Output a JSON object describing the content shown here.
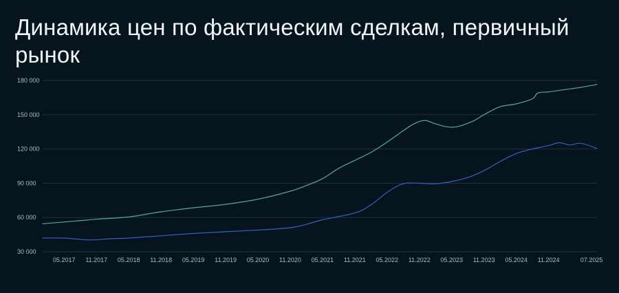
{
  "title": "Динамика цен по фактическим сделкам, первичный рынок",
  "colors": {
    "background": "#05141d",
    "title": "#f3f6f8",
    "grid": "#1e3542",
    "tick_label": "#aebdc6"
  },
  "chart_data": {
    "type": "line",
    "title": "Динамика цен по фактическим сделкам, первичный рынок",
    "xlabel": "",
    "ylabel": "",
    "ylim": [
      30000,
      180000
    ],
    "yticks": [
      30000,
      60000,
      90000,
      120000,
      150000,
      180000
    ],
    "ytick_labels": [
      "30 000",
      "60 000",
      "90 000",
      "120 000",
      "150 000",
      "180 000"
    ],
    "xrange": [
      "2017-01",
      "2025-08"
    ],
    "xticks": [
      "2017-05",
      "2017-11",
      "2018-05",
      "2018-11",
      "2019-05",
      "2019-11",
      "2020-05",
      "2020-11",
      "2021-05",
      "2021-11",
      "2022-05",
      "2022-11",
      "2023-05",
      "2023-11",
      "2024-05",
      "2024-11",
      "2025-07"
    ],
    "xtick_labels": [
      "05.2017",
      "11.2017",
      "05.2018",
      "11.2018",
      "05.2019",
      "11.2019",
      "05.2020",
      "11.2020",
      "05.2021",
      "11.2021",
      "05.2022",
      "11.2022",
      "05.2023",
      "11.2023",
      "05.2024",
      "11.2024",
      "07.2025"
    ],
    "grid": true,
    "legend": "none",
    "series": [
      {
        "color": "#5aa898",
        "points": [
          [
            "2017-01",
            54500
          ],
          [
            "2017-05",
            56000
          ],
          [
            "2017-11",
            58500
          ],
          [
            "2018-05",
            60500
          ],
          [
            "2018-11",
            65000
          ],
          [
            "2019-05",
            68500
          ],
          [
            "2019-11",
            71500
          ],
          [
            "2020-05",
            76000
          ],
          [
            "2020-11",
            83000
          ],
          [
            "2021-02",
            88000
          ],
          [
            "2021-05",
            94000
          ],
          [
            "2021-08",
            103000
          ],
          [
            "2021-11",
            110000
          ],
          [
            "2022-02",
            117000
          ],
          [
            "2022-05",
            126000
          ],
          [
            "2022-08",
            136000
          ],
          [
            "2022-10",
            142000
          ],
          [
            "2022-12",
            145000
          ],
          [
            "2023-02",
            142000
          ],
          [
            "2023-04",
            139500
          ],
          [
            "2023-06",
            139500
          ],
          [
            "2023-09",
            144500
          ],
          [
            "2023-11",
            150000
          ],
          [
            "2024-02",
            157000
          ],
          [
            "2024-05",
            159500
          ],
          [
            "2024-08",
            164000
          ],
          [
            "2024-09",
            169000
          ],
          [
            "2024-11",
            170000
          ],
          [
            "2025-02",
            172000
          ],
          [
            "2025-05",
            174000
          ],
          [
            "2025-08",
            176500
          ]
        ]
      },
      {
        "color": "#3a5fc4",
        "points": [
          [
            "2017-01",
            42000
          ],
          [
            "2017-05",
            42000
          ],
          [
            "2017-09",
            40500
          ],
          [
            "2017-11",
            40500
          ],
          [
            "2018-02",
            41500
          ],
          [
            "2018-05",
            42000
          ],
          [
            "2018-11",
            44000
          ],
          [
            "2019-05",
            46000
          ],
          [
            "2019-11",
            47500
          ],
          [
            "2020-05",
            49000
          ],
          [
            "2020-11",
            51000
          ],
          [
            "2021-02",
            54000
          ],
          [
            "2021-05",
            58000
          ],
          [
            "2021-11",
            64000
          ],
          [
            "2022-02",
            71000
          ],
          [
            "2022-05",
            82000
          ],
          [
            "2022-08",
            89500
          ],
          [
            "2022-11",
            90000
          ],
          [
            "2023-02",
            89500
          ],
          [
            "2023-05",
            91500
          ],
          [
            "2023-08",
            95000
          ],
          [
            "2023-11",
            101000
          ],
          [
            "2024-02",
            109000
          ],
          [
            "2024-05",
            116000
          ],
          [
            "2024-08",
            120000
          ],
          [
            "2024-11",
            123000
          ],
          [
            "2025-01",
            125500
          ],
          [
            "2025-03",
            123500
          ],
          [
            "2025-05",
            125000
          ],
          [
            "2025-08",
            120500
          ]
        ]
      }
    ]
  }
}
